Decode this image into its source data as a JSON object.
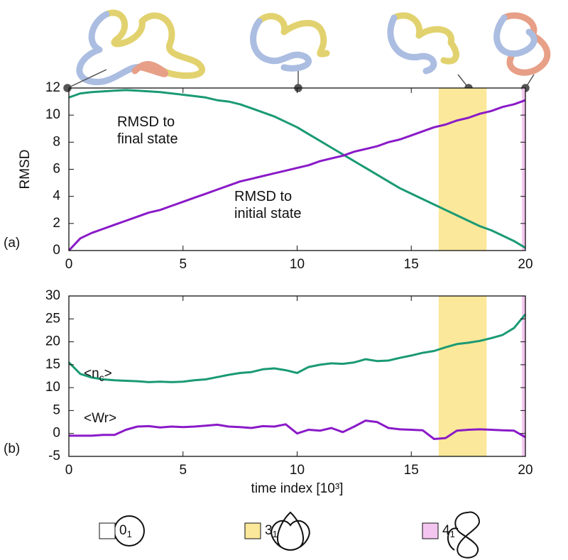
{
  "chart_data": [
    {
      "type": "line",
      "panel_label": "(a)",
      "ylabel": "RMSD",
      "x": [
        0,
        0.5,
        1,
        1.5,
        2,
        2.5,
        3,
        3.5,
        4,
        4.5,
        5,
        5.5,
        6,
        6.5,
        7,
        7.5,
        8,
        8.5,
        9,
        9.5,
        10,
        10.5,
        11,
        11.5,
        12,
        12.5,
        13,
        13.5,
        14,
        14.5,
        15,
        15.5,
        16,
        16.5,
        17,
        17.5,
        18,
        18.5,
        19,
        19.5,
        20
      ],
      "series": [
        {
          "name": "RMSD to final state",
          "color": "#1a9a74",
          "values": [
            11.3,
            11.6,
            11.7,
            11.75,
            11.8,
            11.85,
            11.8,
            11.75,
            11.7,
            11.6,
            11.5,
            11.4,
            11.3,
            11.1,
            11.0,
            10.8,
            10.5,
            10.2,
            9.9,
            9.5,
            9.1,
            8.6,
            8.1,
            7.6,
            7.1,
            6.6,
            6.1,
            5.6,
            5.1,
            4.6,
            4.2,
            3.8,
            3.4,
            3.0,
            2.6,
            2.2,
            1.8,
            1.5,
            1.1,
            0.7,
            0.2
          ]
        },
        {
          "name": "RMSD to initial state",
          "color": "#8a1ac8",
          "values": [
            0,
            0.9,
            1.3,
            1.6,
            1.9,
            2.2,
            2.5,
            2.8,
            3.0,
            3.3,
            3.6,
            3.9,
            4.2,
            4.5,
            4.8,
            5.1,
            5.3,
            5.5,
            5.7,
            5.9,
            6.1,
            6.3,
            6.6,
            6.8,
            7.0,
            7.3,
            7.5,
            7.7,
            8.0,
            8.2,
            8.5,
            8.8,
            9.1,
            9.3,
            9.6,
            9.8,
            10.1,
            10.3,
            10.6,
            10.8,
            11.1
          ]
        }
      ],
      "shaded_regions": [
        {
          "xlim": [
            16.2,
            18.3
          ],
          "color": "#fbe89a"
        },
        {
          "xlim": [
            19.85,
            20
          ],
          "color": "#f3c6f0"
        }
      ],
      "xlim": [
        0,
        20
      ],
      "xticks": [
        0,
        5,
        10,
        15,
        20
      ],
      "ylim": [
        0,
        12
      ],
      "yticks": [
        0,
        2,
        4,
        6,
        8,
        10,
        12
      ],
      "grid": false
    },
    {
      "type": "line",
      "panel_label": "(b)",
      "xlabel": "time index [10³]",
      "x": [
        0,
        0.5,
        1,
        1.5,
        2,
        2.5,
        3,
        3.5,
        4,
        4.5,
        5,
        5.5,
        6,
        6.5,
        7,
        7.5,
        8,
        8.5,
        9,
        9.5,
        10,
        10.5,
        11,
        11.5,
        12,
        12.5,
        13,
        13.5,
        14,
        14.5,
        15,
        15.5,
        16,
        16.5,
        17,
        17.5,
        18,
        18.5,
        19,
        19.5,
        20
      ],
      "series": [
        {
          "name": "<n",
          "name_sub": "c",
          "name_end": ">",
          "color": "#1a9a74",
          "values": [
            15.5,
            13,
            12.2,
            11.8,
            11.6,
            11.5,
            11.4,
            11.2,
            11.3,
            11.2,
            11.3,
            11.6,
            11.8,
            12.3,
            12.8,
            13.2,
            13.4,
            14,
            14.2,
            13.8,
            13.2,
            14.5,
            15,
            15.3,
            15.2,
            15.5,
            16.2,
            15.8,
            15.9,
            16.5,
            17,
            17.6,
            18,
            18.8,
            19.5,
            19.8,
            20.2,
            20.8,
            21.5,
            23,
            26
          ]
        },
        {
          "name": "<Wr>",
          "color": "#8a1ac8",
          "values": [
            -0.5,
            -0.5,
            -0.5,
            -0.3,
            -0.3,
            0.8,
            1.5,
            1.6,
            1.3,
            1.5,
            1.4,
            1.5,
            1.7,
            1.9,
            1.5,
            1.4,
            1.2,
            1.6,
            1.5,
            2,
            0,
            0.8,
            0.6,
            1.2,
            0.3,
            1.5,
            2.8,
            2.5,
            1.2,
            0.9,
            0.8,
            0.7,
            -1.2,
            -1,
            0.6,
            0.8,
            0.9,
            0.8,
            0.7,
            0.6,
            -0.8
          ]
        }
      ],
      "shaded_regions": [
        {
          "xlim": [
            16.2,
            18.3
          ],
          "color": "#fbe89a"
        },
        {
          "xlim": [
            19.85,
            20
          ],
          "color": "#f3c6f0"
        }
      ],
      "xlim": [
        0,
        20
      ],
      "xticks": [
        0,
        5,
        10,
        15,
        20
      ],
      "ylim": [
        -5,
        30
      ],
      "yticks": [
        -5,
        0,
        5,
        10,
        15,
        20,
        25,
        30
      ],
      "grid": false
    }
  ],
  "knot_legend": [
    {
      "label": "0",
      "subscript": "1",
      "color": "#ffffff"
    },
    {
      "label": "3",
      "subscript": "1",
      "color": "#fbe89a"
    },
    {
      "label": "4",
      "subscript": "1",
      "color": "#f3c6f0"
    }
  ]
}
